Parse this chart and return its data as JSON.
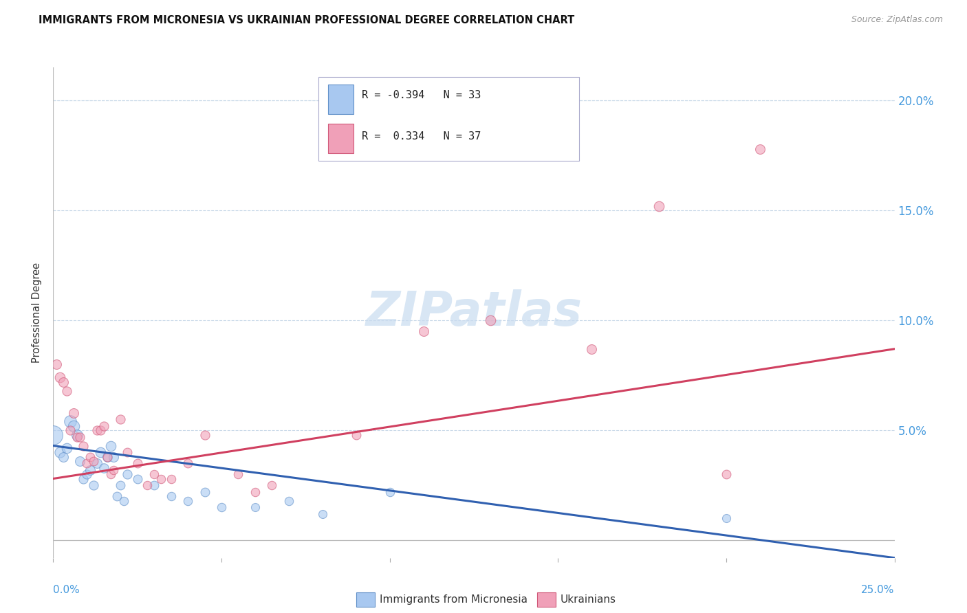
{
  "title": "IMMIGRANTS FROM MICRONESIA VS UKRAINIAN PROFESSIONAL DEGREE CORRELATION CHART",
  "source": "Source: ZipAtlas.com",
  "ylabel": "Professional Degree",
  "watermark": "ZIPatlas",
  "legend_blue_r": "-0.394",
  "legend_blue_n": "33",
  "legend_pink_r": "0.334",
  "legend_pink_n": "37",
  "legend_blue_label": "Immigrants from Micronesia",
  "legend_pink_label": "Ukrainians",
  "xlim": [
    0.0,
    0.25
  ],
  "ylim": [
    -0.008,
    0.215
  ],
  "yticks": [
    0.05,
    0.1,
    0.15,
    0.2
  ],
  "ytick_labels": [
    "5.0%",
    "10.0%",
    "15.0%",
    "20.0%"
  ],
  "blue_fill": "#A8C8F0",
  "blue_edge": "#6090C8",
  "pink_fill": "#F0A0B8",
  "pink_edge": "#D05878",
  "blue_line_color": "#3060B0",
  "pink_line_color": "#D04060",
  "blue_points": [
    [
      0.0,
      0.048,
      400
    ],
    [
      0.002,
      0.04,
      120
    ],
    [
      0.003,
      0.038,
      100
    ],
    [
      0.004,
      0.042,
      110
    ],
    [
      0.005,
      0.054,
      160
    ],
    [
      0.006,
      0.052,
      140
    ],
    [
      0.007,
      0.048,
      130
    ],
    [
      0.008,
      0.036,
      100
    ],
    [
      0.009,
      0.028,
      90
    ],
    [
      0.01,
      0.03,
      90
    ],
    [
      0.011,
      0.032,
      100
    ],
    [
      0.012,
      0.025,
      90
    ],
    [
      0.013,
      0.035,
      100
    ],
    [
      0.014,
      0.04,
      110
    ],
    [
      0.015,
      0.033,
      95
    ],
    [
      0.016,
      0.038,
      100
    ],
    [
      0.017,
      0.043,
      110
    ],
    [
      0.018,
      0.038,
      100
    ],
    [
      0.019,
      0.02,
      85
    ],
    [
      0.02,
      0.025,
      85
    ],
    [
      0.021,
      0.018,
      80
    ],
    [
      0.022,
      0.03,
      90
    ],
    [
      0.025,
      0.028,
      85
    ],
    [
      0.03,
      0.025,
      85
    ],
    [
      0.035,
      0.02,
      80
    ],
    [
      0.04,
      0.018,
      80
    ],
    [
      0.045,
      0.022,
      85
    ],
    [
      0.05,
      0.015,
      80
    ],
    [
      0.06,
      0.015,
      75
    ],
    [
      0.07,
      0.018,
      80
    ],
    [
      0.08,
      0.012,
      75
    ],
    [
      0.1,
      0.022,
      80
    ],
    [
      0.2,
      0.01,
      75
    ]
  ],
  "pink_points": [
    [
      0.001,
      0.08,
      100
    ],
    [
      0.002,
      0.074,
      110
    ],
    [
      0.003,
      0.072,
      100
    ],
    [
      0.004,
      0.068,
      90
    ],
    [
      0.005,
      0.05,
      90
    ],
    [
      0.006,
      0.058,
      100
    ],
    [
      0.007,
      0.047,
      90
    ],
    [
      0.008,
      0.047,
      90
    ],
    [
      0.009,
      0.043,
      90
    ],
    [
      0.01,
      0.035,
      85
    ],
    [
      0.011,
      0.038,
      85
    ],
    [
      0.012,
      0.036,
      85
    ],
    [
      0.013,
      0.05,
      90
    ],
    [
      0.014,
      0.05,
      90
    ],
    [
      0.015,
      0.052,
      90
    ],
    [
      0.016,
      0.038,
      85
    ],
    [
      0.017,
      0.03,
      80
    ],
    [
      0.018,
      0.032,
      80
    ],
    [
      0.02,
      0.055,
      90
    ],
    [
      0.022,
      0.04,
      85
    ],
    [
      0.025,
      0.035,
      85
    ],
    [
      0.028,
      0.025,
      80
    ],
    [
      0.03,
      0.03,
      80
    ],
    [
      0.032,
      0.028,
      80
    ],
    [
      0.035,
      0.028,
      80
    ],
    [
      0.04,
      0.035,
      85
    ],
    [
      0.045,
      0.048,
      90
    ],
    [
      0.055,
      0.03,
      80
    ],
    [
      0.06,
      0.022,
      80
    ],
    [
      0.065,
      0.025,
      80
    ],
    [
      0.09,
      0.048,
      85
    ],
    [
      0.11,
      0.095,
      100
    ],
    [
      0.13,
      0.1,
      110
    ],
    [
      0.16,
      0.087,
      100
    ],
    [
      0.18,
      0.152,
      110
    ],
    [
      0.2,
      0.03,
      85
    ],
    [
      0.21,
      0.178,
      100
    ]
  ],
  "blue_trend_x": [
    0.0,
    0.25
  ],
  "blue_trend_y": [
    0.043,
    -0.008
  ],
  "pink_trend_x": [
    0.0,
    0.25
  ],
  "pink_trend_y": [
    0.028,
    0.087
  ]
}
